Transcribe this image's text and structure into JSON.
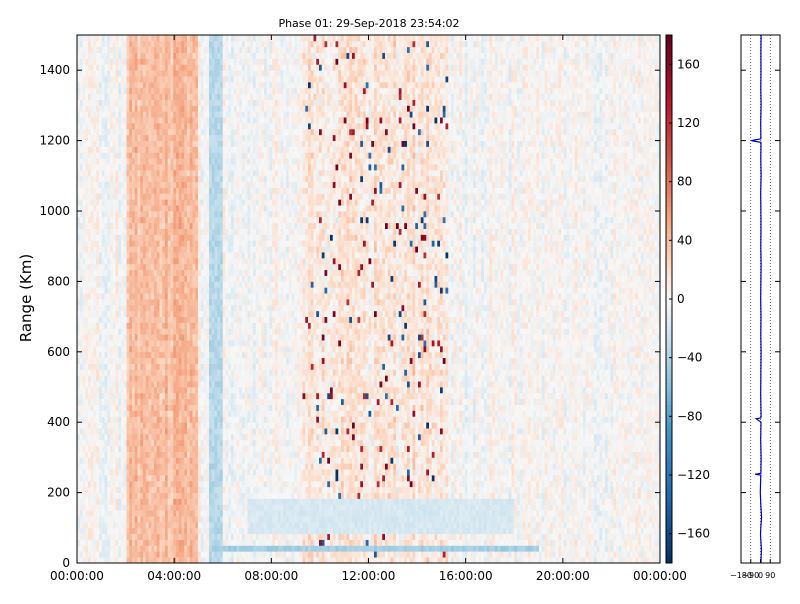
{
  "chart_data": [
    {
      "type": "heatmap",
      "title": "Phase 01: 29-Sep-2018 23:54:02",
      "xlabel": "",
      "ylabel": "Range (Km)",
      "x_ticks": [
        "00:00:00",
        "04:00:00",
        "08:00:00",
        "12:00:00",
        "16:00:00",
        "20:00:00",
        "00:00:00"
      ],
      "x_range_hours": [
        0,
        24
      ],
      "y_ticks": [
        0,
        200,
        400,
        600,
        800,
        1000,
        1200,
        1400
      ],
      "ylim": [
        0,
        1500
      ],
      "colorbar": {
        "colormap": "RdBu_r",
        "range": [
          -180,
          180
        ],
        "ticks": [
          "160",
          "120",
          "80",
          "40",
          "0",
          "−40",
          "−80",
          "−120",
          "−160"
        ],
        "tick_values": [
          160,
          120,
          80,
          40,
          0,
          -40,
          -80,
          -120,
          -160
        ]
      },
      "features": {
        "warm_band_hours": [
          2.0,
          5.0
        ],
        "warm_band_phase": 45,
        "cool_stripe_hours": [
          5.45,
          5.95
        ],
        "cool_stripe_phase": -35,
        "noisy_region_hours": [
          9.3,
          15.3
        ],
        "noisy_region_bias": 25,
        "low_range_cool_band_km": [
          90,
          190
        ],
        "low_range_cool_band_hours": [
          7.0,
          18.0
        ]
      },
      "grid": false
    },
    {
      "type": "line",
      "title": "",
      "xlabel": "",
      "ylabel": "",
      "xlim": [
        -180,
        180
      ],
      "ylim": [
        0,
        1500
      ],
      "x_ticks": [
        "−180",
        "−90",
        "0",
        "90"
      ],
      "x_tick_values": [
        -180,
        -90,
        0,
        90
      ],
      "grid_x_values": [
        -90,
        0,
        90
      ],
      "series": [
        {
          "color": "#0000cc",
          "y_km": [
            0,
            40,
            80,
            100,
            130,
            160,
            200,
            250,
            252,
            255,
            300,
            350,
            400,
            410,
            412,
            415,
            480,
            550,
            600,
            650,
            700,
            750,
            800,
            850,
            900,
            950,
            1000,
            1050,
            1100,
            1150,
            1195,
            1200,
            1205,
            1250,
            1300,
            1350,
            1400,
            1450,
            1500
          ],
          "x_deg": [
            5,
            8,
            0,
            3,
            10,
            4,
            -2,
            3,
            -50,
            4,
            6,
            2,
            5,
            -40,
            3,
            6,
            2,
            4,
            6,
            3,
            5,
            2,
            4,
            6,
            3,
            5,
            4,
            2,
            6,
            3,
            5,
            -85,
            4,
            2,
            6,
            3,
            5,
            4,
            6
          ]
        }
      ]
    }
  ]
}
